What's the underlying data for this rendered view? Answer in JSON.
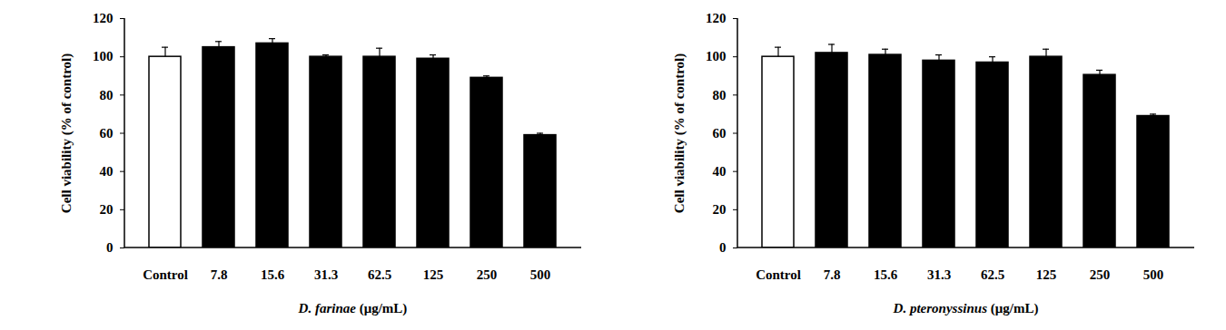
{
  "chart_data": [
    {
      "type": "bar",
      "x_label": "D. farinae (μg/mL)",
      "y_label": "Cell viability (% of control)",
      "categories": [
        "Control",
        "7.8",
        "15.6",
        "31.3",
        "62.5",
        "125",
        "250",
        "500"
      ],
      "values": [
        100,
        105,
        107,
        100,
        100,
        99,
        89,
        59
      ],
      "errors": [
        5,
        3,
        2.5,
        1,
        4.5,
        2,
        1,
        1
      ],
      "colors": [
        "#ffffff",
        "#000000",
        "#000000",
        "#000000",
        "#000000",
        "#000000",
        "#000000",
        "#000000"
      ],
      "ylim": [
        0,
        120
      ],
      "yticks": [
        0,
        20,
        40,
        60,
        80,
        100,
        120
      ]
    },
    {
      "type": "bar",
      "x_label": "D. pteronyssinus (μg/mL)",
      "y_label": "Cell viability (% of control)",
      "categories": [
        "Control",
        "7.8",
        "15.6",
        "31.3",
        "62.5",
        "125",
        "250",
        "500"
      ],
      "values": [
        100,
        102,
        101,
        98,
        97,
        100,
        90.5,
        69
      ],
      "errors": [
        5,
        4.5,
        3,
        3,
        3,
        4,
        2.5,
        1
      ],
      "colors": [
        "#ffffff",
        "#000000",
        "#000000",
        "#000000",
        "#000000",
        "#000000",
        "#000000",
        "#000000"
      ],
      "ylim": [
        0,
        120
      ],
      "yticks": [
        0,
        20,
        40,
        60,
        80,
        100,
        120
      ]
    }
  ]
}
